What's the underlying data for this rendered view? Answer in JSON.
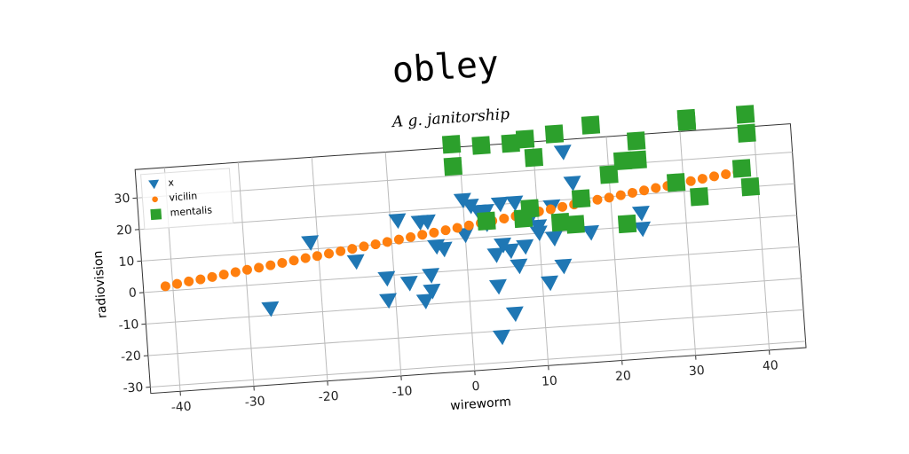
{
  "chart_data": {
    "type": "scatter",
    "title": "obley",
    "subtitle": "A g. janitorship",
    "x_label": "wireworm",
    "y_label": "radiovision",
    "xlim": [
      -44,
      45
    ],
    "ylim": [
      -32,
      39
    ],
    "xticks": [
      -40,
      -30,
      -20,
      -10,
      0,
      10,
      20,
      30,
      40
    ],
    "yticks": [
      -30,
      -20,
      -10,
      0,
      10,
      20,
      30
    ],
    "grid": true,
    "legend": "upper left",
    "series": [
      {
        "name": "x",
        "color": "#1f77b4",
        "marker": "triangle-down",
        "x": [
          -27,
          -21,
          -15,
          -11,
          -11,
          -9,
          -8,
          -6,
          -6,
          -5,
          -5,
          -5,
          -4,
          -3,
          0,
          0,
          1,
          2,
          3,
          4,
          4,
          4,
          5,
          5,
          6,
          6,
          7,
          7,
          8,
          9,
          10,
          10,
          11,
          12,
          13,
          14,
          15,
          17,
          24,
          24,
          12,
          3
        ],
        "values": [
          -8,
          12,
          5,
          -1,
          -8,
          17,
          -3,
          16,
          -9,
          -6,
          -1,
          16,
          8,
          7,
          22,
          11,
          20,
          18,
          14,
          4,
          -22,
          -6,
          7,
          20,
          -15,
          5,
          20,
          0,
          6,
          15,
          12,
          10,
          -6,
          8,
          -1,
          35,
          25,
          9,
          14,
          9,
          18,
          18
        ]
      },
      {
        "name": "vicilin",
        "color": "#ff7f0e",
        "marker": "circle",
        "x": [
          -41,
          -39.4,
          -37.8,
          -36.2,
          -34.6,
          -33,
          -31.4,
          -29.8,
          -28.2,
          -26.6,
          -25,
          -23.4,
          -21.8,
          -20.2,
          -18.6,
          -17,
          -15.4,
          -13.8,
          -12.2,
          -10.6,
          -9,
          -7.4,
          -5.8,
          -4.2,
          -2.6,
          -1,
          0.6,
          2.2,
          3.8,
          5.4,
          7,
          8.6,
          10.2,
          11.8,
          13.4,
          15,
          16.6,
          18.2,
          19.8,
          21.4,
          23,
          24.6,
          26.2,
          27.8,
          29.4,
          31,
          32.6,
          34.2,
          35.8,
          37.4
        ],
        "values": [
          1.5,
          2.0,
          2.5,
          2.9,
          3.4,
          3.9,
          4.4,
          4.9,
          5.3,
          5.8,
          6.3,
          6.8,
          7.3,
          7.7,
          8.2,
          8.7,
          9.2,
          9.7,
          10.1,
          10.6,
          11.1,
          11.6,
          12.1,
          12.5,
          13.0,
          13.5,
          14.0,
          14.5,
          14.9,
          15.4,
          15.9,
          16.4,
          16.9,
          17.3,
          17.8,
          18.3,
          18.8,
          19.3,
          19.7,
          20.2,
          20.7,
          21.2,
          21.7,
          22.1,
          22.6,
          23.1,
          23.6,
          24.1,
          24.5,
          25.0
        ]
      },
      {
        "name": "mentalis",
        "color": "#2ca02c",
        "marker": "square",
        "x": [
          -1,
          -1,
          3,
          7,
          9,
          10,
          13,
          16,
          18,
          20,
          22,
          22,
          24,
          24,
          29,
          31,
          31,
          32,
          38,
          39,
          39,
          39,
          3,
          8,
          9,
          13,
          15
        ],
        "values": [
          40,
          33,
          39,
          39,
          40,
          34,
          41,
          20,
          43,
          27,
          11,
          31,
          37,
          31,
          23,
          42,
          43,
          18,
          26,
          20,
          37,
          43,
          15,
          15,
          18,
          13,
          12
        ]
      }
    ]
  }
}
